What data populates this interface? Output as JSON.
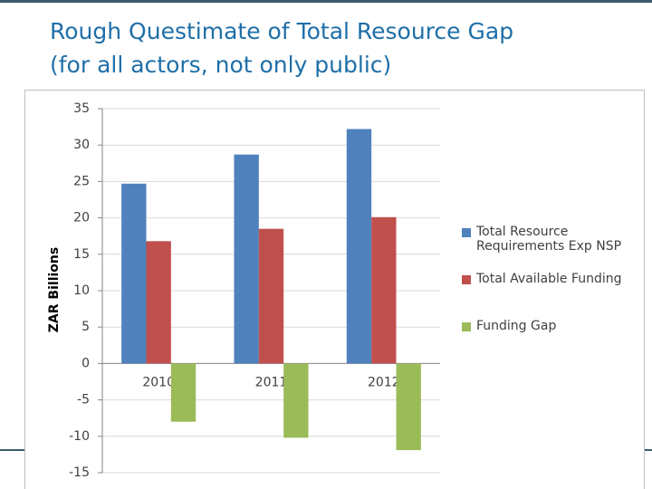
{
  "chart_data": {
    "type": "bar",
    "title": "Rough Questimate of Total Resource Gap",
    "subtitle": "(for all actors, not only public)",
    "y_label": "ZAR Billions",
    "categories": [
      "2010",
      "2011",
      "2012"
    ],
    "series": [
      {
        "name": "Total Resource Requirements Exp NSP",
        "color": "#4f81bd",
        "values": [
          24.7,
          28.7,
          32.2
        ]
      },
      {
        "name": "Total Available Funding",
        "color": "#c0504d",
        "values": [
          16.8,
          18.5,
          20.1
        ]
      },
      {
        "name": "Funding Gap",
        "color": "#9bbb59",
        "values": [
          -8,
          -10.2,
          -11.9
        ]
      }
    ],
    "ylim": [
      -15,
      35
    ],
    "yticks": [
      -15,
      -10,
      -5,
      0,
      5,
      10,
      15,
      20,
      25,
      30,
      35
    ],
    "grid": true,
    "legend": "right"
  }
}
